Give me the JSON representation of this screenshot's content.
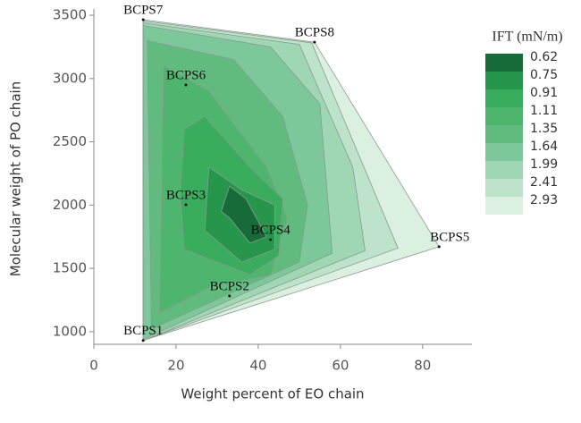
{
  "chart_data": {
    "type": "contour",
    "xlabel": "Weight percent of EO chain",
    "ylabel": "Molecular weight of PO chain",
    "xlim": [
      0,
      92
    ],
    "ylim": [
      900,
      3550
    ],
    "xticks": [
      0,
      20,
      40,
      60,
      80
    ],
    "yticks": [
      1000,
      1500,
      2000,
      2500,
      3000,
      3500
    ],
    "points": [
      {
        "name": "BCPS1",
        "x": 12,
        "y": 930
      },
      {
        "name": "BCPS2",
        "x": 33,
        "y": 1282
      },
      {
        "name": "BCPS3",
        "x": 22.4,
        "y": 2003
      },
      {
        "name": "BCPS4",
        "x": 43,
        "y": 1727
      },
      {
        "name": "BCPS5",
        "x": 84,
        "y": 1671
      },
      {
        "name": "BCPS6",
        "x": 22.4,
        "y": 2949
      },
      {
        "name": "BCPS7",
        "x": 12,
        "y": 3465
      },
      {
        "name": "BCPS8",
        "x": 53.7,
        "y": 3288
      }
    ],
    "colorbar": {
      "title": "IFT (mN/m)",
      "levels": [
        0.62,
        0.75,
        0.91,
        1.11,
        1.35,
        1.64,
        1.99,
        2.41,
        2.93
      ],
      "colors": [
        "#176b38",
        "#27964d",
        "#3aac5e",
        "#4eb56f",
        "#62bb7e",
        "#7dc89b",
        "#9fd7b4",
        "#bde4cb",
        "#dcf0e2"
      ]
    },
    "contours": [
      {
        "points": [
          [
            33,
            2150
          ],
          [
            37,
            2050
          ],
          [
            42,
            1750
          ],
          [
            38,
            1700
          ],
          [
            33,
            1900
          ],
          [
            31,
            1950
          ]
        ]
      },
      {
        "points": [
          [
            28,
            2300
          ],
          [
            36,
            2120
          ],
          [
            44,
            2000
          ],
          [
            44,
            1650
          ],
          [
            36,
            1550
          ],
          [
            27,
            1800
          ]
        ]
      },
      {
        "points": [
          [
            22,
            2600
          ],
          [
            27,
            2700
          ],
          [
            38,
            2300
          ],
          [
            46,
            2050
          ],
          [
            45,
            1600
          ],
          [
            38,
            1450
          ],
          [
            22,
            1650
          ],
          [
            21,
            2100
          ]
        ]
      },
      {
        "points": [
          [
            17,
            3100
          ],
          [
            28,
            2900
          ],
          [
            42,
            2300
          ],
          [
            47,
            1900
          ],
          [
            43,
            1450
          ],
          [
            28,
            1350
          ],
          [
            16,
            1150
          ]
        ]
      },
      {
        "points": [
          [
            13,
            3300
          ],
          [
            34,
            3150
          ],
          [
            46,
            2700
          ],
          [
            52,
            2000
          ],
          [
            50,
            1550
          ],
          [
            14,
            1020
          ]
        ]
      },
      {
        "points": [
          [
            12,
            3420
          ],
          [
            43,
            3250
          ],
          [
            55,
            2800
          ],
          [
            58,
            1620
          ],
          [
            12,
            940
          ]
        ]
      },
      {
        "points": [
          [
            12,
            3440
          ],
          [
            50,
            3270
          ],
          [
            63,
            2300
          ],
          [
            66,
            1640
          ],
          [
            12,
            930
          ]
        ]
      },
      {
        "points": [
          [
            12,
            3455
          ],
          [
            53,
            3282
          ],
          [
            74,
            1660
          ],
          [
            12,
            930
          ]
        ]
      },
      {
        "points": [
          [
            12,
            3465
          ],
          [
            53.7,
            3288
          ],
          [
            84,
            1671
          ],
          [
            12,
            930
          ]
        ]
      }
    ]
  }
}
